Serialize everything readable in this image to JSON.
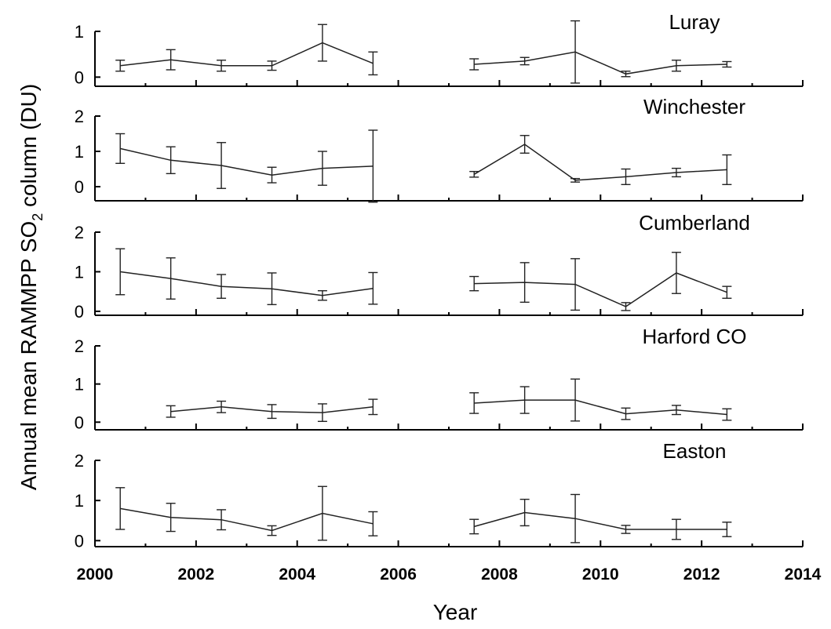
{
  "chart_data": {
    "type": "line",
    "ylabel": {
      "prefix": "Annual mean RAMMPP SO",
      "subscript": "2",
      "suffix": " column (DU)"
    },
    "xlabel": "Year",
    "xlim": [
      2000,
      2014
    ],
    "xticks": [
      2000,
      2002,
      2004,
      2006,
      2008,
      2010,
      2012,
      2014
    ],
    "panels": [
      {
        "title": "Luray",
        "ylim": [
          -0.2,
          1.0
        ],
        "yticks": [
          0,
          1
        ],
        "segments": [
          {
            "x": [
              2000.5,
              2001.5,
              2002.5,
              2003.5,
              2004.5,
              2005.5
            ],
            "y": [
              0.25,
              0.38,
              0.25,
              0.25,
              0.75,
              0.3
            ],
            "err": [
              0.12,
              0.22,
              0.12,
              0.1,
              0.4,
              0.25
            ]
          },
          {
            "x": [
              2007.5,
              2008.5,
              2009.5,
              2010.5,
              2011.5,
              2012.5
            ],
            "y": [
              0.28,
              0.35,
              0.55,
              0.07,
              0.25,
              0.28
            ],
            "err": [
              0.12,
              0.08,
              0.68,
              0.06,
              0.12,
              0.06
            ]
          }
        ]
      },
      {
        "title": "Winchester",
        "ylim": [
          -0.4,
          2.0
        ],
        "yticks": [
          0,
          1,
          2
        ],
        "segments": [
          {
            "x": [
              2000.5,
              2001.5,
              2002.5,
              2003.5,
              2004.5,
              2005.5
            ],
            "y": [
              1.08,
              0.75,
              0.6,
              0.33,
              0.52,
              0.58
            ],
            "err": [
              0.42,
              0.38,
              0.65,
              0.22,
              0.48,
              1.02
            ]
          },
          {
            "x": [
              2007.5,
              2008.5,
              2009.5,
              2010.5,
              2011.5,
              2012.5
            ],
            "y": [
              0.35,
              1.2,
              0.18,
              0.28,
              0.4,
              0.48
            ],
            "err": [
              0.08,
              0.25,
              0.05,
              0.22,
              0.12,
              0.42
            ]
          }
        ]
      },
      {
        "title": "Cumberland",
        "ylim": [
          -0.1,
          2.0
        ],
        "yticks": [
          0,
          1,
          2
        ],
        "segments": [
          {
            "x": [
              2000.5,
              2001.5,
              2002.5,
              2003.5,
              2004.5,
              2005.5
            ],
            "y": [
              1.0,
              0.83,
              0.63,
              0.57,
              0.4,
              0.58
            ],
            "err": [
              0.58,
              0.52,
              0.3,
              0.4,
              0.12,
              0.4
            ]
          },
          {
            "x": [
              2007.5,
              2008.5,
              2009.5,
              2010.5,
              2011.5,
              2012.5
            ],
            "y": [
              0.7,
              0.73,
              0.68,
              0.12,
              0.97,
              0.48
            ],
            "err": [
              0.18,
              0.5,
              0.65,
              0.1,
              0.52,
              0.15
            ]
          }
        ]
      },
      {
        "title": "Harford CO",
        "ylim": [
          -0.2,
          2.0
        ],
        "yticks": [
          0,
          1,
          2
        ],
        "segments": [
          {
            "x": [
              2001.5,
              2002.5,
              2003.5,
              2004.5,
              2005.5
            ],
            "y": [
              0.28,
              0.4,
              0.28,
              0.25,
              0.4
            ],
            "err": [
              0.15,
              0.15,
              0.18,
              0.23,
              0.2
            ]
          },
          {
            "x": [
              2007.5,
              2008.5,
              2009.5,
              2010.5,
              2011.5,
              2012.5
            ],
            "y": [
              0.5,
              0.58,
              0.58,
              0.22,
              0.32,
              0.2
            ],
            "err": [
              0.27,
              0.35,
              0.55,
              0.15,
              0.12,
              0.15
            ]
          }
        ]
      },
      {
        "title": "Easton",
        "ylim": [
          -0.15,
          2.0
        ],
        "yticks": [
          0,
          1,
          2
        ],
        "segments": [
          {
            "x": [
              2000.5,
              2001.5,
              2002.5,
              2003.5,
              2004.5,
              2005.5
            ],
            "y": [
              0.8,
              0.58,
              0.52,
              0.25,
              0.68,
              0.42
            ],
            "err": [
              0.52,
              0.35,
              0.25,
              0.12,
              0.67,
              0.3
            ]
          },
          {
            "x": [
              2007.5,
              2008.5,
              2009.5,
              2010.5,
              2011.5,
              2012.5
            ],
            "y": [
              0.35,
              0.7,
              0.55,
              0.28,
              0.28,
              0.28
            ],
            "err": [
              0.18,
              0.33,
              0.6,
              0.1,
              0.25,
              0.18
            ]
          }
        ]
      }
    ]
  }
}
